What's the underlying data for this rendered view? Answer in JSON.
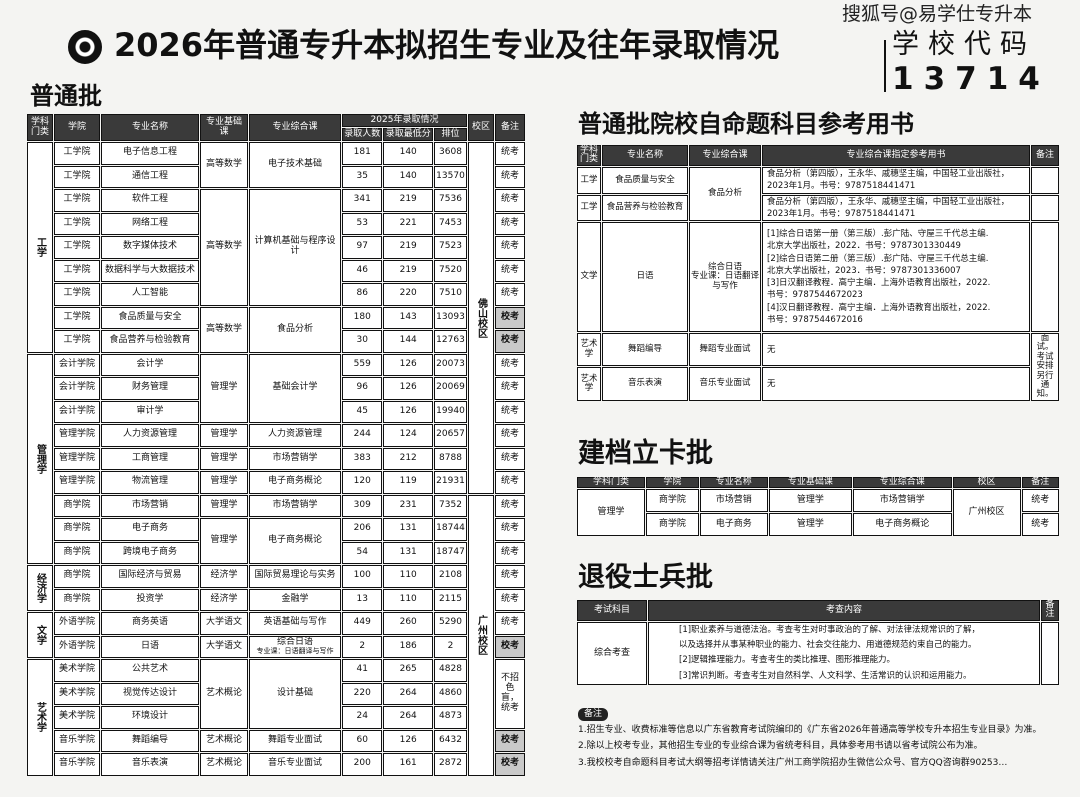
{
  "header": {
    "title": "2026年普通专升本拟招生专业及往年录取情况",
    "watermark": "搜狐号@易学仕专升本",
    "code_label": "学校代码",
    "code_value": "13714",
    "logo": "school-seal"
  },
  "regular": {
    "title": "普通批",
    "headers": {
      "category": "学科门类",
      "college": "学院",
      "major": "专业名称",
      "base": "专业基础课",
      "comp": "专业综合课",
      "year": "2025年录取情况",
      "count": "录取人数",
      "min": "录取最低分",
      "rank": "排位",
      "campus": "校区",
      "note": "备注"
    },
    "categories": [
      "工学",
      "管理学",
      "经济学",
      "文学",
      "艺术学"
    ],
    "campuses": [
      "佛山校区",
      "广州校区"
    ],
    "rows": [
      {
        "college": "工学院",
        "major": "电子信息工程",
        "base": "高等数学",
        "comp": "电子技术基础",
        "count": "181",
        "min": "140",
        "rank": "3608",
        "note": "统考"
      },
      {
        "college": "工学院",
        "major": "通信工程",
        "base": "高等数学",
        "comp": "电子技术基础",
        "count": "35",
        "min": "140",
        "rank": "13570",
        "note": "统考"
      },
      {
        "college": "工学院",
        "major": "软件工程",
        "base": "高等数学",
        "comp": "计算机基础与程序设计",
        "count": "341",
        "min": "219",
        "rank": "7536",
        "note": "统考"
      },
      {
        "college": "工学院",
        "major": "网络工程",
        "base": "高等数学",
        "comp": "计算机基础与程序设计",
        "count": "53",
        "min": "221",
        "rank": "7453",
        "note": "统考"
      },
      {
        "college": "工学院",
        "major": "数字媒体技术",
        "base": "高等数学",
        "comp": "计算机基础与程序设计",
        "count": "97",
        "min": "219",
        "rank": "7523",
        "note": "统考"
      },
      {
        "college": "工学院",
        "major": "数据科学与大数据技术",
        "base": "高等数学",
        "comp": "计算机基础与程序设计",
        "count": "46",
        "min": "219",
        "rank": "7520",
        "note": "统考"
      },
      {
        "college": "工学院",
        "major": "人工智能",
        "base": "高等数学",
        "comp": "计算机基础与程序设计",
        "count": "86",
        "min": "220",
        "rank": "7510",
        "note": "统考"
      },
      {
        "college": "工学院",
        "major": "食品质量与安全",
        "base": "高等数学",
        "comp": "食品分析",
        "count": "180",
        "min": "143",
        "rank": "13093",
        "note": "校考"
      },
      {
        "college": "工学院",
        "major": "食品营养与检验教育",
        "base": "高等数学",
        "comp": "食品分析",
        "count": "30",
        "min": "144",
        "rank": "12763",
        "note": "校考"
      },
      {
        "college": "会计学院",
        "major": "会计学",
        "base": "管理学",
        "comp": "基础会计学",
        "count": "559",
        "min": "126",
        "rank": "20073",
        "note": "统考"
      },
      {
        "college": "会计学院",
        "major": "财务管理",
        "base": "管理学",
        "comp": "基础会计学",
        "count": "96",
        "min": "126",
        "rank": "20069",
        "note": "统考"
      },
      {
        "college": "会计学院",
        "major": "审计学",
        "base": "管理学",
        "comp": "基础会计学",
        "count": "45",
        "min": "126",
        "rank": "19940",
        "note": "统考"
      },
      {
        "college": "管理学院",
        "major": "人力资源管理",
        "base": "管理学",
        "comp": "人力资源管理",
        "count": "244",
        "min": "124",
        "rank": "20657",
        "note": "统考"
      },
      {
        "college": "管理学院",
        "major": "工商管理",
        "base": "管理学",
        "comp": "市场营销学",
        "count": "383",
        "min": "212",
        "rank": "8788",
        "note": "统考"
      },
      {
        "college": "管理学院",
        "major": "物流管理",
        "base": "管理学",
        "comp": "电子商务概论",
        "count": "120",
        "min": "119",
        "rank": "21931",
        "note": "统考"
      },
      {
        "college": "商学院",
        "major": "市场营销",
        "base": "管理学",
        "comp": "市场营销学",
        "count": "309",
        "min": "231",
        "rank": "7352",
        "note": "统考"
      },
      {
        "college": "商学院",
        "major": "电子商务",
        "base": "管理学",
        "comp": "电子商务概论",
        "count": "206",
        "min": "131",
        "rank": "18744",
        "note": "统考"
      },
      {
        "college": "商学院",
        "major": "跨境电子商务",
        "base": "管理学",
        "comp": "电子商务概论",
        "count": "54",
        "min": "131",
        "rank": "18747",
        "note": "统考"
      },
      {
        "college": "商学院",
        "major": "国际经济与贸易",
        "base": "经济学",
        "comp": "国际贸易理论与实务",
        "count": "100",
        "min": "110",
        "rank": "2108",
        "note": "统考"
      },
      {
        "college": "商学院",
        "major": "投资学",
        "base": "经济学",
        "comp": "金融学",
        "count": "13",
        "min": "110",
        "rank": "2115",
        "note": "统考"
      },
      {
        "college": "外语学院",
        "major": "商务英语",
        "base": "大学语文",
        "comp": "英语基础与写作",
        "count": "449",
        "min": "260",
        "rank": "5290",
        "note": "统考"
      },
      {
        "college": "外语学院",
        "major": "日语",
        "base": "大学语文",
        "comp": "综合日语",
        "comp2": "专业课：日语翻译与写作",
        "count": "2",
        "min": "186",
        "rank": "2",
        "note": "校考"
      },
      {
        "college": "美术学院",
        "major": "公共艺术",
        "base": "艺术概论",
        "comp": "设计基础",
        "count": "41",
        "min": "265",
        "rank": "4828",
        "note": "不招色盲，统考"
      },
      {
        "college": "美术学院",
        "major": "视觉传达设计",
        "base": "艺术概论",
        "comp": "设计基础",
        "count": "220",
        "min": "264",
        "rank": "4860",
        "note": "不招色盲，统考"
      },
      {
        "college": "美术学院",
        "major": "环境设计",
        "base": "艺术概论",
        "comp": "设计基础",
        "count": "24",
        "min": "264",
        "rank": "4873",
        "note": "不招色盲，统考"
      },
      {
        "college": "音乐学院",
        "major": "舞蹈编导",
        "base": "艺术概论",
        "comp": "舞蹈专业面试",
        "count": "60",
        "min": "126",
        "rank": "6432",
        "note": "校考"
      },
      {
        "college": "音乐学院",
        "major": "音乐表演",
        "base": "艺术概论",
        "comp": "音乐专业面试",
        "count": "200",
        "min": "161",
        "rank": "2872",
        "note": "校考"
      }
    ]
  },
  "books": {
    "title": "普通批院校自命题科目参考用书",
    "headers": {
      "category": "学科门类",
      "major": "专业名称",
      "comp": "专业综合课",
      "book": "专业综合课指定参考用书",
      "note": "备注"
    },
    "rows": [
      {
        "category": "工学",
        "major": "食品质量与安全",
        "comp": "食品分析",
        "book": [
          "食品分析（第四版），王永华、戚穗坚主编，中国轻工业出版社，",
          "2023年1月。书号：9787518441471"
        ]
      },
      {
        "category": "工学",
        "major": "食品营养与检验教育",
        "comp": "食品分析",
        "book": [
          "食品分析（第四版），王永华、戚穗坚主编，中国轻工业出版社，",
          "2023年1月。书号：9787518441471"
        ]
      },
      {
        "category": "文学",
        "major": "日语",
        "comp": "综合日语",
        "comp2": "专业课：日语翻译与写作",
        "book": [
          "[1]综合日语第一册（第三版）.彭广陆、守屋三千代总主编.",
          "北京大学出版社，2022．书号：9787301330449",
          "[2]综合日语第二册（第三版）.彭广陆、守屋三千代总主编.",
          "北京大学出版社，2023．书号：9787301336007",
          "[3]日汉翻译教程．高宁主编．上海外语教育出版社，2022.",
          "书号：9787544672023",
          "[4]汉日翻译教程．高宁主编．上海外语教育出版社，2022.",
          "书号：9787544672016"
        ]
      },
      {
        "category": "艺术学",
        "major": "舞蹈编导",
        "comp": "舞蹈专业面试",
        "book": [
          "无"
        ]
      },
      {
        "category": "艺术学",
        "major": "音乐表演",
        "comp": "音乐专业面试",
        "book": [
          "无"
        ]
      }
    ],
    "art_note": "面试。考试安排另行通知。"
  },
  "card": {
    "title": "建档立卡批",
    "headers": [
      "学科门类",
      "学院",
      "专业名称",
      "专业基础课",
      "专业综合课",
      "校区",
      "备注"
    ],
    "category": "管理学",
    "campus": "广州校区",
    "rows": [
      {
        "college": "商学院",
        "major": "市场营销",
        "base": "管理学",
        "comp": "市场营销学",
        "note": "统考"
      },
      {
        "college": "商学院",
        "major": "电子商务",
        "base": "管理学",
        "comp": "电子商务概论",
        "note": "统考"
      }
    ]
  },
  "veteran": {
    "title": "退役士兵批",
    "headers": {
      "subject": "考试科目",
      "content": "考查内容",
      "note": "备注"
    },
    "subject": "综合考查",
    "content": [
      "[1]职业素养与道德法治。考查考生对时事政治的了解、对法律法规常识的了解，",
      "以及选择并从事某种职业的能力、社会交往能力、用道德规范约束自己的能力。",
      "[2]逻辑推理能力。考查考生的类比推理、图形推理能力。",
      "[3]常识判断。考查考生对自然科学、人文科学、生活常识的认识和运用能力。"
    ]
  },
  "notes": {
    "label": "备注",
    "items": [
      "1.招生专业、收费标准等信息以广东省教育考试院编印的《广东省2026年普通高等学校专升本招生专业目录》为准。",
      "2.除以上校考专业，其他招生专业的专业综合课为省统考科目，具体参考用书请以省考试院公布为准。",
      "3.我校校考自命题科目考试大纲等招考详情请关注广州工商学院招办生微信公众号、官方QQ咨询群90253…"
    ]
  }
}
